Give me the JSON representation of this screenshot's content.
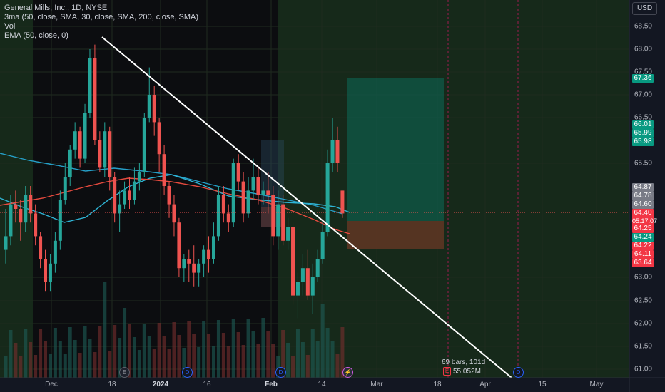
{
  "legend": {
    "symbol": "General Mills, Inc., 1D, NYSE",
    "ma": "3ma (50, close, SMA, 30, close, SMA, 200, close, SMA)",
    "vol": "Vol",
    "ema": "EMA (50, close, 0)"
  },
  "currency": "USD",
  "price_axis": [
    "68.50",
    "68.00",
    "67.50",
    "67.00",
    "66.50",
    "65.50",
    "65.00",
    "63.00",
    "62.50",
    "62.00",
    "61.50",
    "61.00"
  ],
  "price_labels": [
    {
      "text": "67.36",
      "color": "#089981"
    },
    {
      "text": "66.01",
      "color": "#089981"
    },
    {
      "text": "65.99",
      "color": "#089981"
    },
    {
      "text": "65.98",
      "color": "#089981"
    },
    {
      "text": "64.87",
      "color": "#787b86"
    },
    {
      "text": "64.78",
      "color": "#787b86"
    },
    {
      "text": "64.60",
      "color": "#787b86"
    },
    {
      "text": "64.40",
      "color": "#f23645"
    },
    {
      "text": "05:17:07",
      "color": "#f23645"
    },
    {
      "text": "64.25",
      "color": "#f23645"
    },
    {
      "text": "64.24",
      "color": "#089981"
    },
    {
      "text": "64.22",
      "color": "#f23645"
    },
    {
      "text": "64.11",
      "color": "#f23645"
    },
    {
      "text": "63.64",
      "color": "#f23645"
    }
  ],
  "time_axis": [
    {
      "text": "Dec",
      "bold": false
    },
    {
      "text": "18",
      "bold": false
    },
    {
      "text": "2024",
      "bold": true
    },
    {
      "text": "16",
      "bold": false
    },
    {
      "text": "Feb",
      "bold": true
    },
    {
      "text": "14",
      "bold": false
    },
    {
      "text": "Mar",
      "bold": false
    },
    {
      "text": "18",
      "bold": false
    },
    {
      "text": "Apr",
      "bold": false
    },
    {
      "text": "15",
      "bold": false
    },
    {
      "text": "May",
      "bold": false
    }
  ],
  "range_info": {
    "bars": "69 bars, 101d",
    "volume": "55.052M",
    "badge": "E"
  },
  "markers": {
    "earnings": "E",
    "dividend": "D"
  },
  "colors": {
    "up": "#26a69a",
    "down": "#ef5350",
    "bg": "#131722"
  }
}
